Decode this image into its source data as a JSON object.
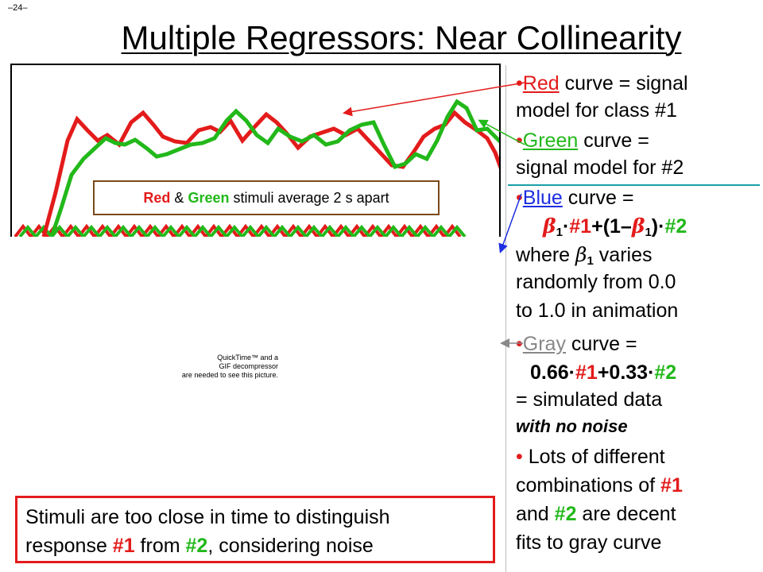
{
  "slide": {
    "number": "–24–",
    "title": "Multiple Regressors: Near Collinearity"
  },
  "legend": {
    "red_word": "Red",
    "amp": "&",
    "green_word": "Green",
    "rest": "stimuli average 2 s apart"
  },
  "placeholder": {
    "line1": "QuickTime™ and a",
    "line2": "GIF decompressor",
    "line3": "are needed to see this picture."
  },
  "bottom_note": {
    "l1": "Stimuli are too close in time to distinguish",
    "l2a": "response ",
    "l2b": "#1",
    "l2c": " from ",
    "l2d": "#2",
    "l2e": ", considering noise"
  },
  "panel": {
    "red_word": "Red",
    "red_rest": " curve = signal",
    "red_l2": "model for class #1",
    "green_word": "Green",
    "green_rest": " curve =",
    "green_l2": "signal model for #2",
    "blue_word": "Blue",
    "blue_rest": " curve =",
    "beta": "β",
    "sub1": "1",
    "eq1_mid": "#1",
    "eq1_plus": "+(1–",
    "eq1_close": ")",
    "eq1_end": "#2",
    "where": "where ",
    "varies": " varies",
    "randomly": "randomly  from 0.0",
    "to1": "to 1.0 in animation",
    "gray_word": "Gray",
    "gray_rest": " curve =",
    "g_a": "0.66",
    "g_b": "#1",
    "g_c": "+0.33",
    "g_d": "#2",
    "sim": " = simulated data",
    "noise": "with no noise",
    "lots1": " Lots of different",
    "lots2a": "combinations of ",
    "lots2b": "#1",
    "lots3a": "and ",
    "lots3b": "#2",
    "lots3c": " are decent",
    "lots4": "fits to gray curve"
  },
  "colors": {
    "red": "#e31b1b",
    "green": "#22b81a",
    "blue": "#1c2ee0",
    "gray": "#888888"
  }
}
